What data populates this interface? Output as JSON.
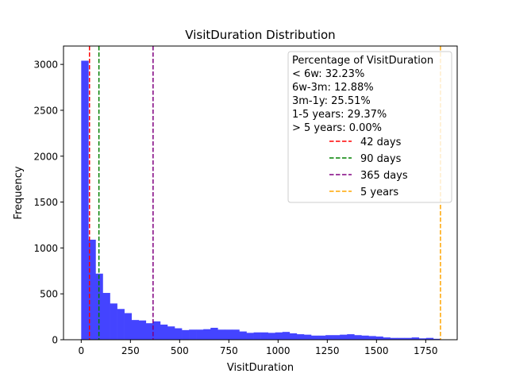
{
  "chart_data": {
    "type": "bar",
    "title": "VisitDuration Distribution",
    "xlabel": "VisitDuration",
    "ylabel": "Frequency",
    "xlim": [
      -90,
      1910
    ],
    "ylim": [
      0,
      3200
    ],
    "x_ticks": [
      0,
      250,
      500,
      750,
      1000,
      1250,
      1500,
      1750
    ],
    "y_ticks": [
      0,
      500,
      1000,
      1500,
      2000,
      2500,
      3000
    ],
    "bar_color": "#4444ff",
    "bin_width": 36.5,
    "bin_start": 0,
    "values": [
      3040,
      1090,
      720,
      510,
      395,
      335,
      290,
      215,
      210,
      180,
      200,
      165,
      145,
      125,
      105,
      110,
      110,
      115,
      130,
      110,
      110,
      110,
      90,
      75,
      80,
      80,
      75,
      80,
      85,
      70,
      60,
      55,
      45,
      45,
      50,
      50,
      55,
      60,
      50,
      45,
      40,
      35,
      25,
      20,
      20,
      20,
      25,
      15,
      20,
      10
    ],
    "vlines": [
      {
        "x": 42,
        "color": "#ff0000",
        "label": "42 days"
      },
      {
        "x": 90,
        "color": "#008000",
        "label": "90 days"
      },
      {
        "x": 365,
        "color": "#800080",
        "label": "365 days"
      },
      {
        "x": 1825,
        "color": "#ffa500",
        "label": "5 years"
      }
    ],
    "legend_position": "upper right",
    "legend_title": "Percentage of VisitDuration",
    "legend_lines": [
      " < 6w: 32.23%",
      " 6w-3m: 12.88%",
      " 3m-1y: 25.51%",
      " 1-5 years: 29.37%",
      " > 5 years: 0.00%"
    ],
    "grid": false
  }
}
